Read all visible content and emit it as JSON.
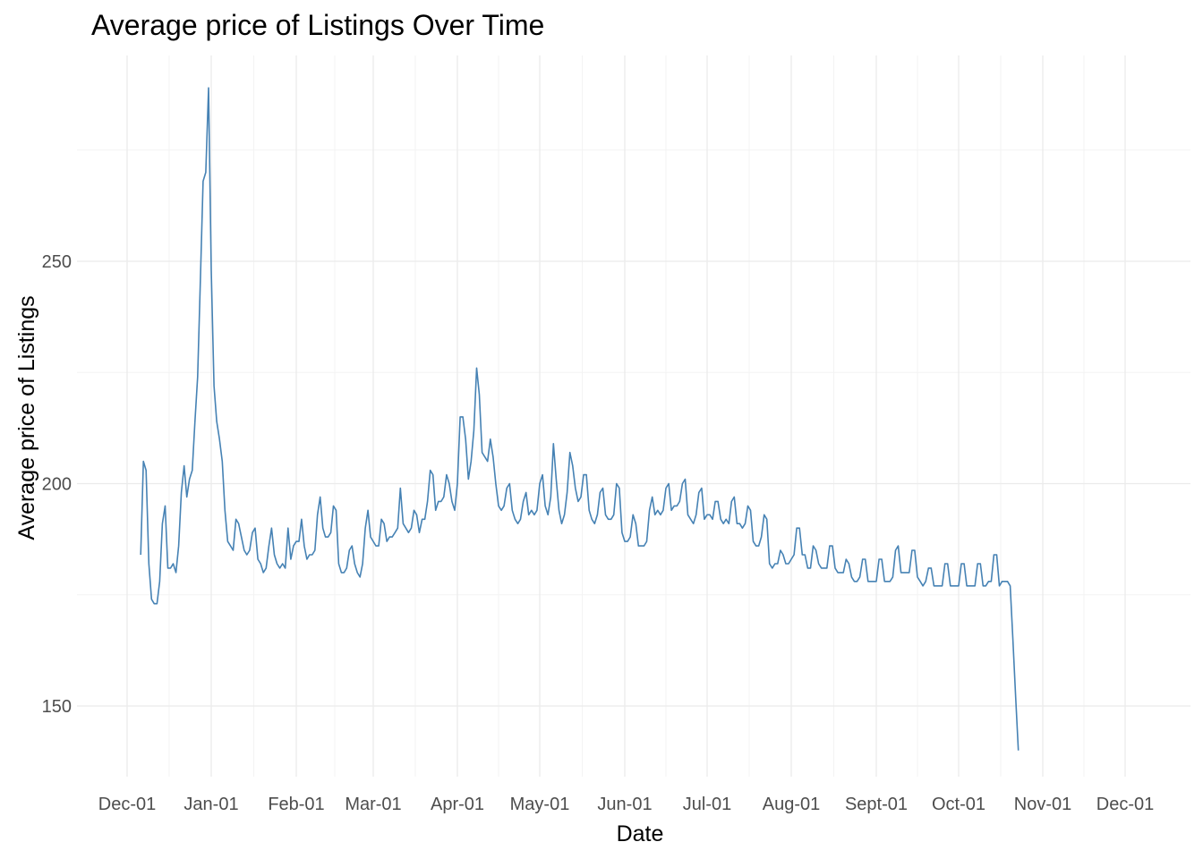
{
  "chart_data": {
    "type": "line",
    "title": "Average price of Listings Over Time",
    "xlabel": "Date",
    "ylabel": "Average price of Listings",
    "x_start_date": "2023-12-06",
    "x_ticks": [
      "Dec-01",
      "Jan-01",
      "Feb-01",
      "Mar-01",
      "Apr-01",
      "May-01",
      "Jun-01",
      "Jul-01",
      "Aug-01",
      "Sept-01",
      "Oct-01",
      "Nov-01",
      "Dec-01"
    ],
    "y_ticks": [
      150,
      200,
      250
    ],
    "ylim": [
      135,
      297
    ],
    "grid": true,
    "line_color": "#4682B4",
    "series": [
      {
        "values": [
          184.0,
          205.0,
          203.0,
          182.0,
          174.0,
          173.0,
          173.0,
          178.0,
          191.0,
          195.0,
          181.0,
          181.0,
          182.0,
          180.0,
          186.0,
          198.0,
          204.0,
          197.0,
          201.0,
          203.0,
          214.0,
          224.0,
          246.0,
          268.0,
          270.0,
          289.0,
          248.0,
          222.0,
          214.0,
          210.0,
          205.0,
          194.0,
          187.0,
          186.0,
          185.0,
          192.0,
          191.0,
          188.0,
          185.0,
          184.0,
          185.0,
          189.0,
          190.0,
          183.0,
          182.0,
          180.0,
          181.0,
          186.0,
          190.0,
          184.0,
          182.0,
          181.0,
          182.0,
          181.0,
          190.0,
          183.0,
          186.0,
          187.0,
          187.0,
          192.0,
          186.0,
          183.0,
          184.0,
          184.0,
          185.0,
          193.0,
          197.0,
          190.0,
          188.0,
          188.0,
          189.0,
          195.0,
          194.0,
          182.0,
          180.0,
          180.0,
          181.0,
          185.0,
          186.0,
          182.0,
          180.0,
          179.0,
          182.0,
          190.0,
          194.0,
          188.0,
          187.0,
          186.0,
          186.0,
          192.0,
          191.0,
          187.0,
          188.0,
          188.0,
          189.0,
          190.0,
          199.0,
          191.0,
          190.0,
          189.0,
          190.0,
          194.0,
          193.0,
          189.0,
          192.0,
          192.0,
          196.0,
          203.0,
          202.0,
          194.0,
          196.0,
          196.0,
          197.0,
          202.0,
          200.0,
          196.0,
          194.0,
          200.0,
          215.0,
          215.0,
          210.0,
          201.0,
          205.0,
          212.0,
          226.0,
          220.0,
          207.0,
          206.0,
          205.0,
          210.0,
          206.0,
          200.0,
          195.0,
          194.0,
          195.0,
          199.0,
          200.0,
          194.0,
          192.0,
          191.0,
          192.0,
          196.0,
          198.0,
          193.0,
          194.0,
          193.0,
          194.0,
          200.0,
          202.0,
          195.0,
          193.0,
          197.0,
          209.0,
          201.0,
          194.0,
          191.0,
          193.0,
          198.0,
          207.0,
          204.0,
          199.0,
          196.0,
          197.0,
          202.0,
          202.0,
          194.0,
          192.0,
          191.0,
          193.0,
          198.0,
          199.0,
          193.0,
          192.0,
          192.0,
          193.0,
          200.0,
          199.0,
          189.0,
          187.0,
          187.0,
          188.0,
          193.0,
          191.0,
          186.0,
          186.0,
          186.0,
          187.0,
          194.0,
          197.0,
          193.0,
          194.0,
          193.0,
          194.0,
          199.0,
          200.0,
          194.0,
          195.0,
          195.0,
          196.0,
          200.0,
          201.0,
          193.0,
          192.0,
          191.0,
          193.0,
          198.0,
          199.0,
          192.0,
          193.0,
          193.0,
          192.0,
          196.0,
          196.0,
          192.0,
          191.0,
          192.0,
          191.0,
          196.0,
          197.0,
          191.0,
          191.0,
          190.0,
          191.0,
          195.0,
          194.0,
          187.0,
          186.0,
          186.0,
          188.0,
          193.0,
          192.0,
          182.0,
          181.0,
          182.0,
          182.0,
          185.0,
          184.0,
          182.0,
          182.0,
          183.0,
          184.0,
          190.0,
          190.0,
          184.0,
          184.0,
          181.0,
          181.0,
          186.0,
          185.0,
          182.0,
          181.0,
          181.0,
          181.0,
          186.0,
          186.0,
          181.0,
          180.0,
          180.0,
          180.0,
          183.0,
          182.0,
          179.0,
          178.0,
          178.0,
          179.0,
          183.0,
          183.0,
          178.0,
          178.0,
          178.0,
          178.0,
          183.0,
          183.0,
          178.0,
          178.0,
          178.0,
          179.0,
          185.0,
          186.0,
          180.0,
          180.0,
          180.0,
          180.0,
          185.0,
          185.0,
          179.0,
          178.0,
          177.0,
          178.0,
          181.0,
          181.0,
          177.0,
          177.0,
          177.0,
          177.0,
          182.0,
          182.0,
          177.0,
          177.0,
          177.0,
          177.0,
          182.0,
          182.0,
          177.0,
          177.0,
          177.0,
          177.0,
          182.0,
          182.0,
          177.0,
          177.0,
          178.0,
          178.0,
          184.0,
          184.0,
          177.0,
          178.0,
          178.0,
          178.0,
          177.0,
          165.0,
          152.0,
          140.0
        ]
      }
    ]
  }
}
